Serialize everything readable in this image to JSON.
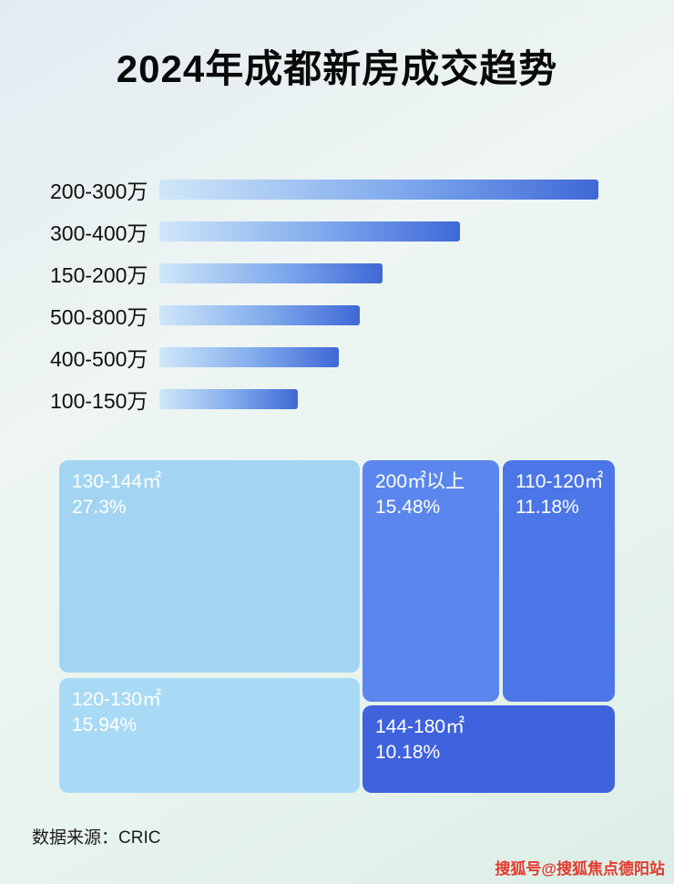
{
  "title": "2024年成都新房成交趋势",
  "chart_data": [
    {
      "type": "bar",
      "orientation": "horizontal",
      "title": "2024年成都新房成交趋势（总价段）",
      "categories": [
        "200-300万",
        "300-400万",
        "150-200万",
        "500-800万",
        "400-500万",
        "100-150万"
      ],
      "values_pct_of_max": [
        100,
        68.5,
        50.8,
        45.6,
        40.9,
        31.5
      ],
      "value_labels_shown": false,
      "axis_shown": false,
      "bar_gradient": [
        "#cfe7f9",
        "#3f68d6"
      ]
    },
    {
      "type": "treemap",
      "title": "面积段成交占比",
      "items": [
        {
          "label": "130-144㎡",
          "value": 27.3,
          "value_label": "27.3%",
          "color": "#a3d5f3"
        },
        {
          "label": "120-130㎡",
          "value": 15.94,
          "value_label": "15.94%",
          "color": "#a9daf5"
        },
        {
          "label": "200㎡以上",
          "value": 15.48,
          "value_label": "15.48%",
          "color": "#5b86ed"
        },
        {
          "label": "110-120㎡",
          "value": 11.18,
          "value_label": "11.18%",
          "color": "#4c76e7"
        },
        {
          "label": "144-180㎡",
          "value": 10.18,
          "value_label": "10.18%",
          "color": "#3f62dd"
        }
      ]
    }
  ],
  "footer": {
    "source": "数据来源：CRIC"
  },
  "watermark": "搜狐号@搜狐焦点德阳站"
}
